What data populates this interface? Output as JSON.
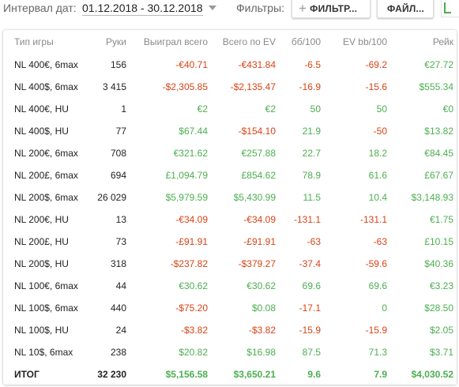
{
  "toolbar": {
    "interval_label": "Интервал дат:",
    "date_range": "01.12.2018 - 30.12.2018",
    "filters_label": "Фильтры:",
    "filters_button": "ФИЛЬТР...",
    "files_button": "ФАЙЛ..."
  },
  "table": {
    "headers": {
      "game": "Тип игры",
      "hands": "Руки",
      "won": "Выиграл всего",
      "ev_total": "Всего по EV",
      "bb100": "бб/100",
      "ev_bb100": "EV bb/100",
      "rake": "Рейк"
    },
    "rows": [
      {
        "game": "NL 400€, 6max",
        "hands": "156",
        "won": "-€40.71",
        "ev_total": "-€431.84",
        "bb100": "-6.5",
        "ev_bb100": "-69.2",
        "rake": "€27.72"
      },
      {
        "game": "NL 400$, 6max",
        "hands": "3 415",
        "won": "-$2,305.85",
        "ev_total": "-$2,135.47",
        "bb100": "-16.9",
        "ev_bb100": "-15.6",
        "rake": "$555.34"
      },
      {
        "game": "NL 400€, HU",
        "hands": "1",
        "won": "€2",
        "ev_total": "€2",
        "bb100": "50",
        "ev_bb100": "50",
        "rake": "€0"
      },
      {
        "game": "NL 400$, HU",
        "hands": "77",
        "won": "$67.44",
        "ev_total": "-$154.10",
        "bb100": "21.9",
        "ev_bb100": "-50",
        "rake": "$13.82"
      },
      {
        "game": "NL 200€, 6max",
        "hands": "708",
        "won": "€321.62",
        "ev_total": "€257.88",
        "bb100": "22.7",
        "ev_bb100": "18.2",
        "rake": "€84.45"
      },
      {
        "game": "NL 200£, 6max",
        "hands": "694",
        "won": "£1,094.79",
        "ev_total": "£854.62",
        "bb100": "78.9",
        "ev_bb100": "61.6",
        "rake": "£67.67"
      },
      {
        "game": "NL 200$, 6max",
        "hands": "26 029",
        "won": "$5,979.59",
        "ev_total": "$5,430.99",
        "bb100": "11.5",
        "ev_bb100": "10.4",
        "rake": "$3,148.93"
      },
      {
        "game": "NL 200€, HU",
        "hands": "13",
        "won": "-€34.09",
        "ev_total": "-€34.09",
        "bb100": "-131.1",
        "ev_bb100": "-131.1",
        "rake": "€1.75"
      },
      {
        "game": "NL 200£, HU",
        "hands": "73",
        "won": "-£91.91",
        "ev_total": "-£91.91",
        "bb100": "-63",
        "ev_bb100": "-63",
        "rake": "£10.15"
      },
      {
        "game": "NL 200$, HU",
        "hands": "318",
        "won": "-$237.82",
        "ev_total": "-$379.27",
        "bb100": "-37.4",
        "ev_bb100": "-59.6",
        "rake": "$40.36"
      },
      {
        "game": "NL 100€, 6max",
        "hands": "44",
        "won": "€30.62",
        "ev_total": "€30.62",
        "bb100": "69.6",
        "ev_bb100": "69.6",
        "rake": "€3.23"
      },
      {
        "game": "NL 100$, 6max",
        "hands": "440",
        "won": "-$75.20",
        "ev_total": "$0.08",
        "bb100": "-17.1",
        "ev_bb100": "0",
        "rake": "$28.50"
      },
      {
        "game": "NL 100$, HU",
        "hands": "24",
        "won": "-$3.82",
        "ev_total": "-$3.82",
        "bb100": "-15.9",
        "ev_bb100": "-15.9",
        "rake": "$2.05"
      },
      {
        "game": "NL 10$, 6max",
        "hands": "238",
        "won": "$20.82",
        "ev_total": "$16.98",
        "bb100": "87.5",
        "ev_bb100": "71.3",
        "rake": "$3.71"
      }
    ],
    "total": {
      "game": "ИТОГ",
      "hands": "32 230",
      "won": "$5,156.58",
      "ev_total": "$3,650.21",
      "bb100": "9.6",
      "ev_bb100": "7.9",
      "rake": "$4,030.52"
    }
  },
  "colors": {
    "positive": "#4caf50",
    "negative": "#d84315",
    "header_text": "#8a8a8a",
    "label_text": "#666666"
  },
  "icons": {
    "filters_button_icon": "plus-icon",
    "date_dropdown_icon": "caret-down-icon",
    "corner_icon": "hand-logo-icon"
  }
}
